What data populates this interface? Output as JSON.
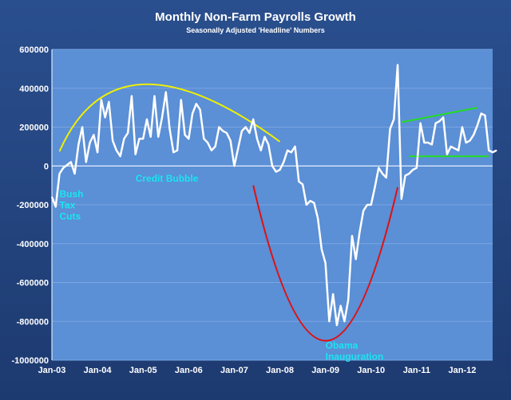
{
  "colors": {
    "background": "#1f3e76",
    "plot_area": "#5b8fd6",
    "gridline": "#7aa6e2",
    "series_line": "#ffffff",
    "annotation_text": "#19e6f0",
    "yellow_curve": "#f0f000",
    "red_curve": "#e01010",
    "green_lines": "#22dd22"
  },
  "chart_data": {
    "type": "line",
    "title": "Monthly Non-Farm Payrolls Growth",
    "subtitle": "Seasonally Adjusted 'Headline' Numbers",
    "xlabel": "",
    "ylabel": "",
    "ylim": [
      -1000000,
      600000
    ],
    "yticks": [
      -1000000,
      -800000,
      -600000,
      -400000,
      -200000,
      0,
      200000,
      400000,
      600000
    ],
    "ytick_labels": [
      "-1000000",
      "-800000",
      "-600000",
      "-400000",
      "-200000",
      "0",
      "200000",
      "400000",
      "600000"
    ],
    "xlim": [
      "2003-01",
      "2012-09"
    ],
    "xtick_labels": [
      "Jan-03",
      "Jan-04",
      "Jan-05",
      "Jan-06",
      "Jan-07",
      "Jan-08",
      "Jan-09",
      "Jan-10",
      "Jan-11",
      "Jan-12"
    ],
    "xtick_dates": [
      "2003-01",
      "2004-01",
      "2005-01",
      "2006-01",
      "2007-01",
      "2008-01",
      "2009-01",
      "2010-01",
      "2011-01",
      "2012-01"
    ],
    "grid": true,
    "legend": "none",
    "start_month": "2003-01",
    "series": [
      {
        "values": [
          -160000,
          -210000,
          -40000,
          -10000,
          5000,
          20000,
          -40000,
          110000,
          200000,
          20000,
          120000,
          160000,
          70000,
          340000,
          250000,
          330000,
          130000,
          80000,
          50000,
          140000,
          170000,
          360000,
          60000,
          140000,
          140000,
          240000,
          150000,
          360000,
          150000,
          250000,
          380000,
          190000,
          70000,
          80000,
          340000,
          160000,
          140000,
          270000,
          320000,
          290000,
          140000,
          120000,
          80000,
          100000,
          200000,
          180000,
          170000,
          130000,
          0,
          90000,
          180000,
          200000,
          170000,
          240000,
          140000,
          80000,
          150000,
          110000,
          0,
          -30000,
          -20000,
          20000,
          80000,
          70000,
          100000,
          -80000,
          -95000,
          -200000,
          -180000,
          -190000,
          -270000,
          -430000,
          -500000,
          -800000,
          -660000,
          -820000,
          -720000,
          -800000,
          -690000,
          -360000,
          -480000,
          -340000,
          -230000,
          -200000,
          -200000,
          -110000,
          -10000,
          -40000,
          -60000,
          190000,
          240000,
          520000,
          -170000,
          -50000,
          -40000,
          -20000,
          -10000,
          220000,
          120000,
          120000,
          110000,
          220000,
          230000,
          250000,
          60000,
          100000,
          90000,
          80000,
          200000,
          120000,
          130000,
          160000,
          210000,
          270000,
          260000,
          80000,
          70000,
          80000
        ]
      }
    ],
    "annotations": [
      {
        "id": "bush",
        "lines": [
          "Bush",
          "Tax",
          "Cuts"
        ],
        "x": "2003-03",
        "y": -160000
      },
      {
        "id": "credit",
        "lines": [
          "Credit Bubble"
        ],
        "x": "2004-11",
        "y": -80000
      },
      {
        "id": "obama",
        "lines": [
          "Obama",
          "Inauguration"
        ],
        "x": "2009-01",
        "y": -940000
      }
    ],
    "overlay_curves": [
      {
        "id": "yellow",
        "color": "#f0f000",
        "points": [
          [
            "2003-03",
            75000
          ],
          [
            "2005-01",
            420000
          ],
          [
            "2008-01",
            125000
          ]
        ]
      },
      {
        "id": "red",
        "color": "#e01010",
        "points": [
          [
            "2007-06",
            -100000
          ],
          [
            "2009-01",
            -900000
          ],
          [
            "2010-08",
            -110000
          ]
        ]
      },
      {
        "id": "green-top",
        "color": "#22dd22",
        "points": [
          [
            "2010-09",
            225000
          ],
          [
            "2012-05",
            300000
          ]
        ]
      },
      {
        "id": "green-bottom",
        "color": "#22dd22",
        "points": [
          [
            "2010-11",
            50000
          ],
          [
            "2012-08",
            50000
          ]
        ]
      }
    ]
  }
}
